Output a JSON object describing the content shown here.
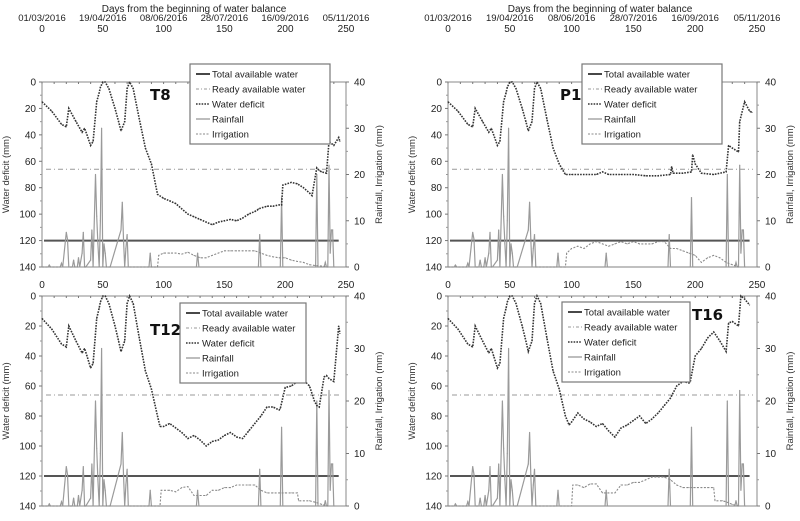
{
  "chart_data": {
    "type": "line",
    "x_axis_top_label": "Days from the beginning of water balance",
    "date_ticks": [
      "01/03/2016",
      "19/04/2016",
      "08/06/2016",
      "28/07/2016",
      "16/09/2016",
      "05/11/2016"
    ],
    "x_ticks": [
      0,
      50,
      100,
      150,
      200,
      250
    ],
    "xlim": [
      0,
      250
    ],
    "y_left_label": "Water deficit (mm)",
    "y_left_ticks": [
      0,
      20,
      40,
      60,
      80,
      100,
      120,
      140
    ],
    "y_left_lim": [
      0,
      140
    ],
    "y_left_inverted": true,
    "y_right_label": "Rainfall, Irrigation (mm)",
    "y_right_ticks": [
      0,
      10,
      20,
      30,
      40
    ],
    "y_right_lim": [
      0,
      40
    ],
    "legend_entries": [
      "Total available water",
      "Ready available water",
      "Water deficit",
      "Rainfall",
      "Irrigation"
    ],
    "total_available_water": 120,
    "ready_available_water": 66,
    "rainfall": {
      "x": [
        0,
        5,
        6,
        7,
        15,
        16,
        17,
        20,
        21,
        22,
        25,
        26,
        27,
        29,
        30,
        31,
        33,
        34,
        35,
        36,
        40,
        41,
        42,
        44,
        45,
        46,
        47,
        48,
        49,
        50,
        51,
        52,
        53,
        55,
        56,
        65,
        66,
        67,
        68,
        69,
        70,
        71,
        72,
        75,
        88,
        89,
        90,
        91,
        127,
        128,
        129,
        178,
        179,
        180,
        196,
        197,
        198,
        225,
        226,
        227,
        228,
        232,
        233,
        234,
        235,
        236,
        237,
        238,
        239,
        240,
        241
      ],
      "y": [
        0,
        0,
        0.4,
        0,
        0,
        0.8,
        0,
        7.5,
        6,
        0,
        0,
        1.5,
        0,
        0,
        2,
        0,
        3,
        7.5,
        0,
        0,
        1.5,
        8,
        0,
        20,
        11,
        5,
        0,
        10,
        30,
        0,
        5,
        3,
        0,
        0,
        0,
        8,
        14,
        6,
        0,
        4,
        7,
        0,
        0,
        0,
        0,
        3,
        0,
        0,
        0,
        3,
        0,
        0,
        7,
        0,
        0,
        15,
        0,
        0,
        20,
        0,
        0,
        0,
        1,
        0,
        0,
        22,
        3,
        8,
        8,
        0,
        0
      ]
    },
    "panels": [
      {
        "name": "T8",
        "water_deficit": {
          "x": [
            0,
            8,
            16,
            20,
            22,
            28,
            33,
            35,
            37,
            40,
            42,
            45,
            47,
            48,
            50,
            52,
            55,
            60,
            63,
            65,
            68,
            70,
            72,
            75,
            80,
            85,
            90,
            95,
            100,
            105,
            110,
            115,
            120,
            125,
            130,
            135,
            140,
            145,
            150,
            155,
            160,
            165,
            170,
            175,
            177,
            178,
            185,
            190,
            195,
            197,
            198,
            205,
            210,
            215,
            220,
            222,
            226,
            228,
            230,
            234,
            236,
            240,
            244,
            245
          ],
          "y": [
            15,
            22,
            32,
            34,
            20,
            30,
            38,
            35,
            40,
            48,
            45,
            15,
            8,
            4,
            0,
            0,
            5,
            20,
            30,
            37,
            30,
            5,
            0,
            5,
            28,
            50,
            62,
            85,
            88,
            90,
            92,
            96,
            100,
            102,
            104,
            106,
            108,
            106,
            105,
            104,
            105,
            103,
            100,
            98,
            97,
            96,
            94,
            94,
            93,
            93,
            78,
            76,
            77,
            80,
            84,
            86,
            65,
            67,
            68,
            69,
            45,
            48,
            42,
            45
          ]
        },
        "irrigation": {
          "x": [
            0,
            95,
            96,
            100,
            105,
            110,
            115,
            120,
            125,
            130,
            135,
            140,
            145,
            150,
            155,
            160,
            165,
            170,
            175,
            180,
            185,
            190,
            195,
            200,
            205,
            210,
            215,
            220,
            225,
            230,
            235
          ],
          "y": [
            0,
            0,
            2.5,
            3,
            3,
            3,
            2.8,
            3.2,
            2.5,
            2,
            2,
            2.5,
            3,
            3.5,
            3.5,
            3.5,
            3.5,
            3.5,
            3.5,
            3,
            2.5,
            2.2,
            2,
            2,
            1.5,
            1.2,
            1,
            0.5,
            0.3,
            0.2,
            0
          ]
        }
      },
      {
        "name": "P1",
        "water_deficit": {
          "x": [
            0,
            8,
            16,
            20,
            22,
            28,
            33,
            35,
            37,
            40,
            42,
            45,
            47,
            48,
            50,
            52,
            55,
            60,
            63,
            65,
            68,
            70,
            72,
            75,
            80,
            85,
            90,
            95,
            100,
            110,
            120,
            125,
            130,
            140,
            150,
            160,
            170,
            180,
            181,
            182,
            190,
            197,
            198,
            200,
            205,
            215,
            225,
            227,
            230,
            235,
            236,
            240,
            244,
            246
          ],
          "y": [
            15,
            22,
            32,
            34,
            20,
            30,
            38,
            35,
            40,
            48,
            45,
            15,
            8,
            4,
            0,
            0,
            5,
            20,
            30,
            37,
            30,
            5,
            0,
            5,
            28,
            50,
            62,
            70,
            70,
            70,
            70,
            68,
            70,
            70,
            70,
            71,
            71,
            70,
            64,
            69,
            69,
            68,
            55,
            62,
            69,
            70,
            68,
            48,
            50,
            53,
            30,
            15,
            22,
            23
          ]
        },
        "irrigation": {
          "x": [
            0,
            95,
            96,
            100,
            105,
            110,
            115,
            120,
            125,
            130,
            135,
            140,
            145,
            150,
            155,
            160,
            165,
            170,
            175,
            180,
            185,
            190,
            195,
            200,
            205,
            210,
            215,
            220,
            225,
            230,
            235
          ],
          "y": [
            0,
            0,
            3,
            4,
            4.5,
            4,
            5,
            5.5,
            5,
            4.5,
            5,
            5.5,
            5,
            5.5,
            5,
            5,
            5,
            5.5,
            5.5,
            4,
            4,
            3.5,
            3,
            2.5,
            1,
            2,
            2.5,
            2,
            1,
            0.5,
            0
          ]
        }
      },
      {
        "name": "T12",
        "water_deficit": {
          "x": [
            0,
            8,
            16,
            20,
            22,
            28,
            33,
            35,
            37,
            40,
            42,
            45,
            47,
            48,
            50,
            52,
            55,
            60,
            63,
            65,
            68,
            70,
            72,
            75,
            80,
            85,
            90,
            95,
            97,
            100,
            105,
            110,
            115,
            120,
            125,
            130,
            135,
            140,
            145,
            150,
            155,
            160,
            165,
            170,
            175,
            180,
            185,
            190,
            195,
            196,
            200,
            205,
            210,
            215,
            220,
            224,
            226,
            228,
            232,
            234,
            236,
            240,
            244,
            245
          ],
          "y": [
            15,
            22,
            32,
            34,
            20,
            30,
            38,
            35,
            40,
            48,
            45,
            15,
            8,
            4,
            0,
            0,
            5,
            20,
            30,
            37,
            30,
            5,
            0,
            5,
            28,
            50,
            62,
            80,
            87,
            87,
            85,
            88,
            91,
            95,
            93,
            96,
            100,
            97,
            96,
            93,
            91,
            94,
            95,
            90,
            85,
            80,
            74,
            74,
            76,
            75,
            61,
            60,
            57,
            56,
            60,
            70,
            73,
            74,
            54,
            53,
            55,
            57,
            20,
            25
          ]
        },
        "irrigation": {
          "x": [
            0,
            97,
            98,
            105,
            110,
            115,
            120,
            125,
            130,
            135,
            140,
            145,
            150,
            155,
            160,
            165,
            170,
            175,
            180,
            185,
            190,
            195,
            200,
            205,
            210,
            211,
            220,
            225,
            230,
            235
          ],
          "y": [
            0,
            0,
            3,
            3,
            2.7,
            3.5,
            3.7,
            2,
            2,
            2,
            3,
            3,
            3.5,
            3.5,
            4,
            4,
            4,
            4,
            3,
            2.5,
            2.5,
            2.5,
            2.5,
            2.5,
            2.5,
            1,
            1,
            0.7,
            0.3,
            0
          ]
        }
      },
      {
        "name": "T16",
        "water_deficit": {
          "x": [
            0,
            8,
            16,
            20,
            22,
            28,
            33,
            35,
            37,
            40,
            42,
            45,
            47,
            48,
            50,
            52,
            55,
            60,
            63,
            65,
            68,
            70,
            72,
            75,
            80,
            85,
            90,
            95,
            98,
            100,
            105,
            110,
            115,
            120,
            125,
            130,
            135,
            140,
            145,
            150,
            155,
            160,
            165,
            170,
            175,
            180,
            185,
            190,
            195,
            196,
            200,
            205,
            210,
            215,
            220,
            225,
            227,
            230,
            235,
            237,
            240,
            244
          ],
          "y": [
            15,
            22,
            32,
            34,
            20,
            30,
            38,
            35,
            40,
            48,
            45,
            15,
            8,
            4,
            0,
            0,
            5,
            20,
            30,
            37,
            30,
            5,
            0,
            5,
            28,
            50,
            62,
            80,
            86,
            84,
            78,
            82,
            84,
            87,
            85,
            90,
            94,
            88,
            86,
            83,
            80,
            85,
            82,
            78,
            73,
            68,
            60,
            57,
            58,
            57,
            40,
            35,
            28,
            24,
            30,
            37,
            18,
            17,
            20,
            0,
            2,
            6
          ]
        },
        "irrigation": {
          "x": [
            0,
            100,
            101,
            105,
            110,
            115,
            120,
            125,
            130,
            135,
            140,
            145,
            150,
            155,
            160,
            165,
            170,
            175,
            180,
            185,
            190,
            195,
            200,
            205,
            210,
            215,
            216,
            222,
            225,
            230,
            235
          ],
          "y": [
            0,
            0,
            4,
            4,
            3.5,
            4.2,
            4.2,
            2.5,
            2.5,
            2.5,
            4,
            4,
            4.5,
            4.5,
            5,
            5.5,
            5.5,
            5.5,
            5,
            4,
            3.5,
            3.5,
            3.5,
            3.5,
            3.5,
            3.5,
            1,
            1,
            0.8,
            0.3,
            0
          ]
        }
      }
    ]
  }
}
